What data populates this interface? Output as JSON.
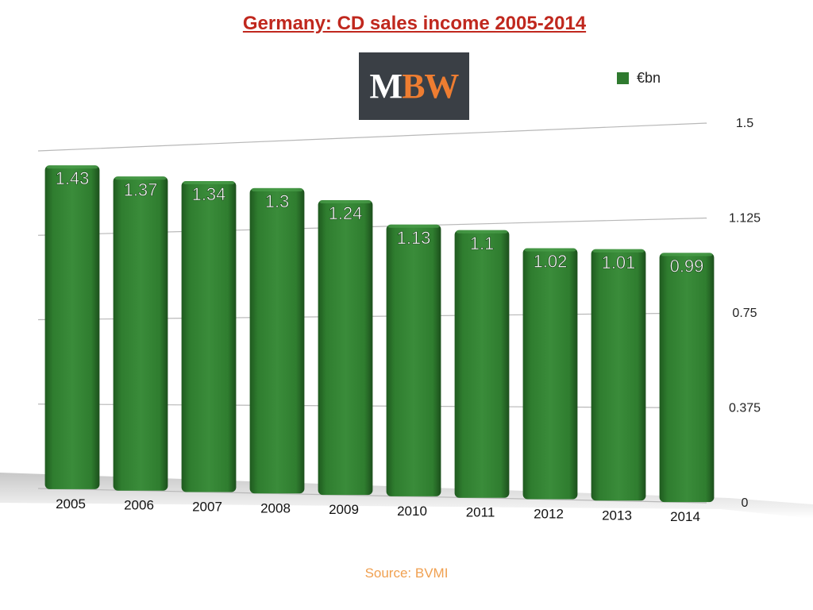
{
  "chart_data": {
    "type": "bar",
    "title": "Germany: CD sales income 2005-2014",
    "categories": [
      "2005",
      "2006",
      "2007",
      "2008",
      "2009",
      "2010",
      "2011",
      "2012",
      "2013",
      "2014"
    ],
    "series": [
      {
        "name": "€bn",
        "values": [
          1.43,
          1.37,
          1.34,
          1.3,
          1.24,
          1.13,
          1.1,
          1.02,
          1.01,
          0.99
        ],
        "color": "#2f7a2f"
      }
    ],
    "data_labels": [
      "1.43",
      "1.37",
      "1.34",
      "1.3",
      "1.24",
      "1.13",
      "1.1",
      "1.02",
      "1.01",
      "0.99"
    ],
    "y_ticks": [
      "0",
      "0.375",
      "0.75",
      "1.125",
      "1.5"
    ],
    "ylim": [
      0,
      1.5
    ],
    "grid": true,
    "legend_position": "top-right"
  },
  "logo": {
    "text_m": "M",
    "text_bw": "BW"
  },
  "source": "Source: BVMI"
}
